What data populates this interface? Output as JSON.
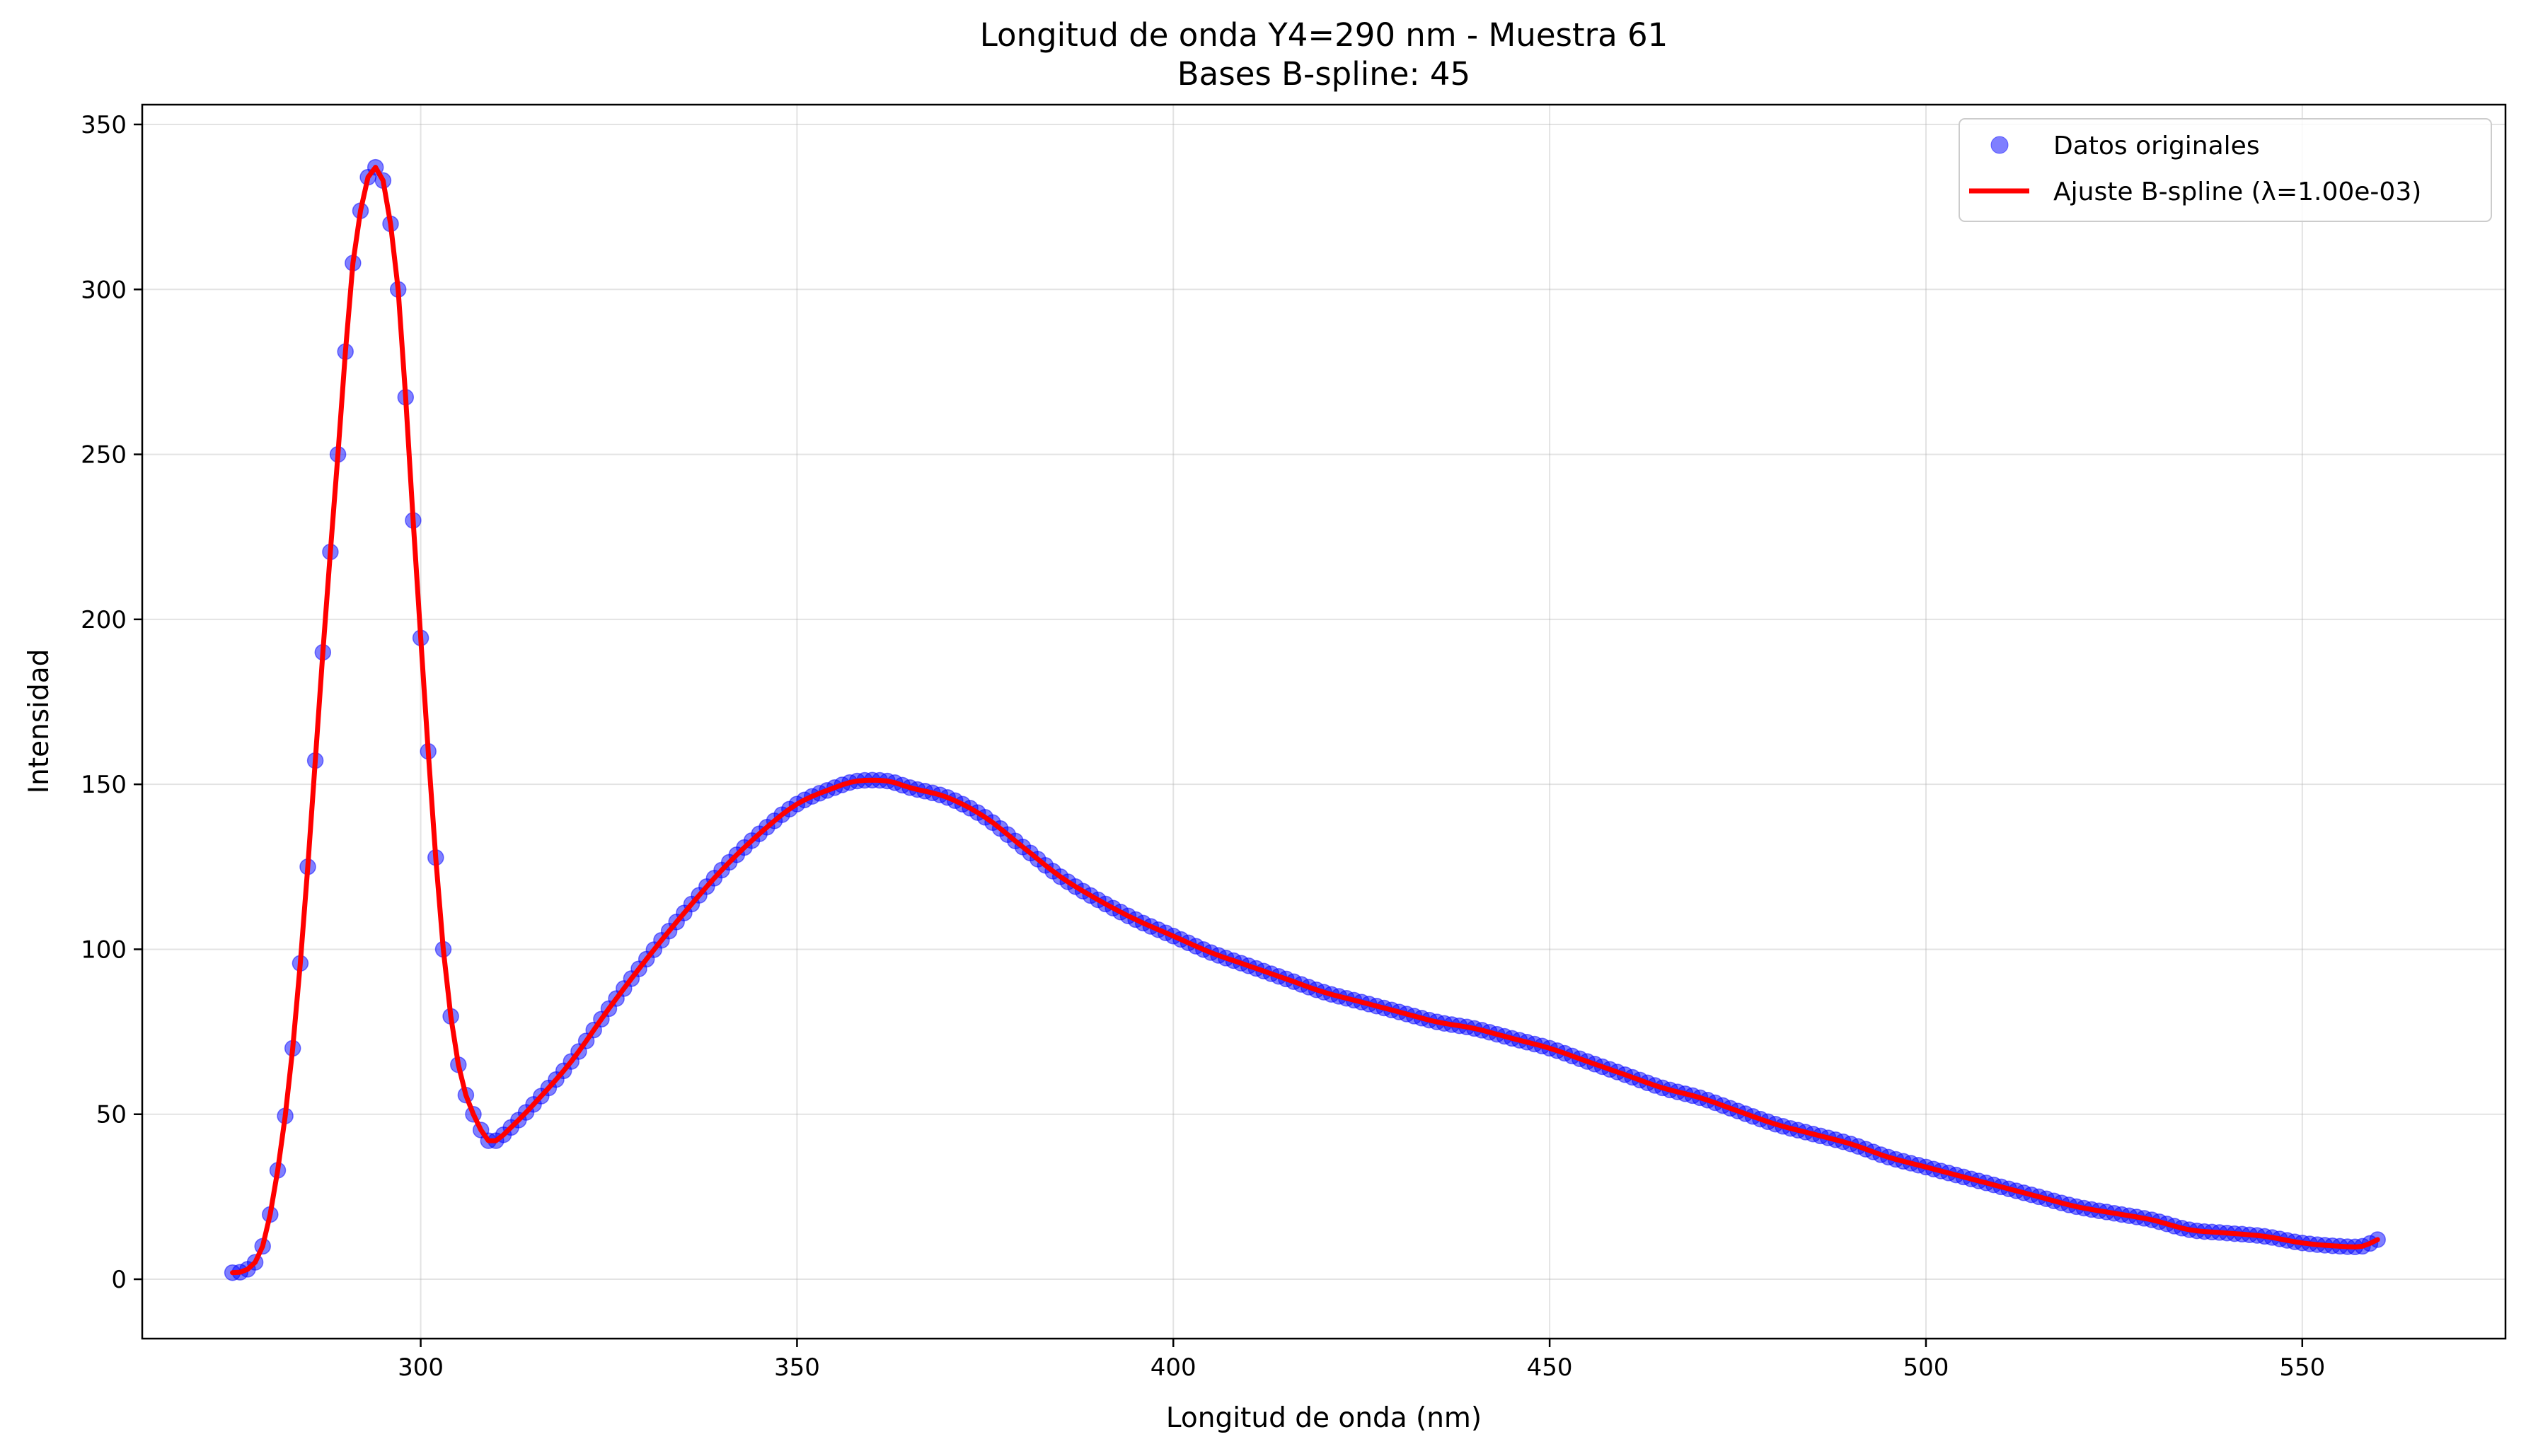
{
  "chart_data": {
    "type": "scatter",
    "title": "Longitud de onda Y4=290 nm - Muestra 61",
    "subtitle": "Bases B-spline: 45",
    "xlabel": "Longitud de onda (nm)",
    "ylabel": "Intensidad",
    "xlim": [
      263,
      577
    ],
    "ylim": [
      -18,
      356
    ],
    "xticks": [
      300,
      350,
      400,
      450,
      500,
      550
    ],
    "yticks": [
      0,
      50,
      100,
      150,
      200,
      250,
      300,
      350
    ],
    "grid": true,
    "legend_position": "top-right",
    "x_range": [
      275,
      560
    ],
    "x_step": 1,
    "anchors": [
      [
        275,
        2
      ],
      [
        277,
        3
      ],
      [
        279,
        10
      ],
      [
        281,
        33
      ],
      [
        283,
        70
      ],
      [
        285,
        125
      ],
      [
        287,
        190
      ],
      [
        289,
        250
      ],
      [
        291,
        308
      ],
      [
        293,
        334
      ],
      [
        294,
        337
      ],
      [
        295,
        333
      ],
      [
        297,
        300
      ],
      [
        299,
        230
      ],
      [
        301,
        160
      ],
      [
        303,
        100
      ],
      [
        305,
        65
      ],
      [
        307,
        50
      ],
      [
        309,
        42
      ],
      [
        310,
        42
      ],
      [
        312,
        46
      ],
      [
        315,
        53
      ],
      [
        320,
        66
      ],
      [
        325,
        82
      ],
      [
        330,
        97
      ],
      [
        335,
        111
      ],
      [
        340,
        124
      ],
      [
        345,
        135
      ],
      [
        350,
        144
      ],
      [
        355,
        149
      ],
      [
        358,
        151
      ],
      [
        362,
        151
      ],
      [
        365,
        149
      ],
      [
        370,
        146
      ],
      [
        375,
        140
      ],
      [
        380,
        131
      ],
      [
        385,
        122
      ],
      [
        390,
        115
      ],
      [
        395,
        109
      ],
      [
        400,
        104
      ],
      [
        405,
        99
      ],
      [
        410,
        95
      ],
      [
        415,
        91
      ],
      [
        420,
        87
      ],
      [
        425,
        84
      ],
      [
        430,
        81
      ],
      [
        435,
        78
      ],
      [
        440,
        76
      ],
      [
        445,
        73
      ],
      [
        450,
        70
      ],
      [
        455,
        66
      ],
      [
        460,
        62
      ],
      [
        465,
        58
      ],
      [
        470,
        55
      ],
      [
        475,
        51
      ],
      [
        480,
        47
      ],
      [
        485,
        44
      ],
      [
        490,
        41
      ],
      [
        495,
        37
      ],
      [
        500,
        34
      ],
      [
        505,
        31
      ],
      [
        510,
        28
      ],
      [
        515,
        25
      ],
      [
        520,
        22
      ],
      [
        525,
        20
      ],
      [
        530,
        18
      ],
      [
        535,
        15
      ],
      [
        540,
        14
      ],
      [
        545,
        13
      ],
      [
        550,
        11
      ],
      [
        555,
        10
      ],
      [
        558,
        10
      ],
      [
        560,
        12
      ]
    ],
    "series": [
      {
        "name": "Datos originales",
        "kind": "scatter",
        "color": "#0000ff",
        "opacity": 0.5
      },
      {
        "name": "Ajuste B-spline (λ=1.00e-03)",
        "kind": "line",
        "color": "#ff0000"
      }
    ]
  }
}
